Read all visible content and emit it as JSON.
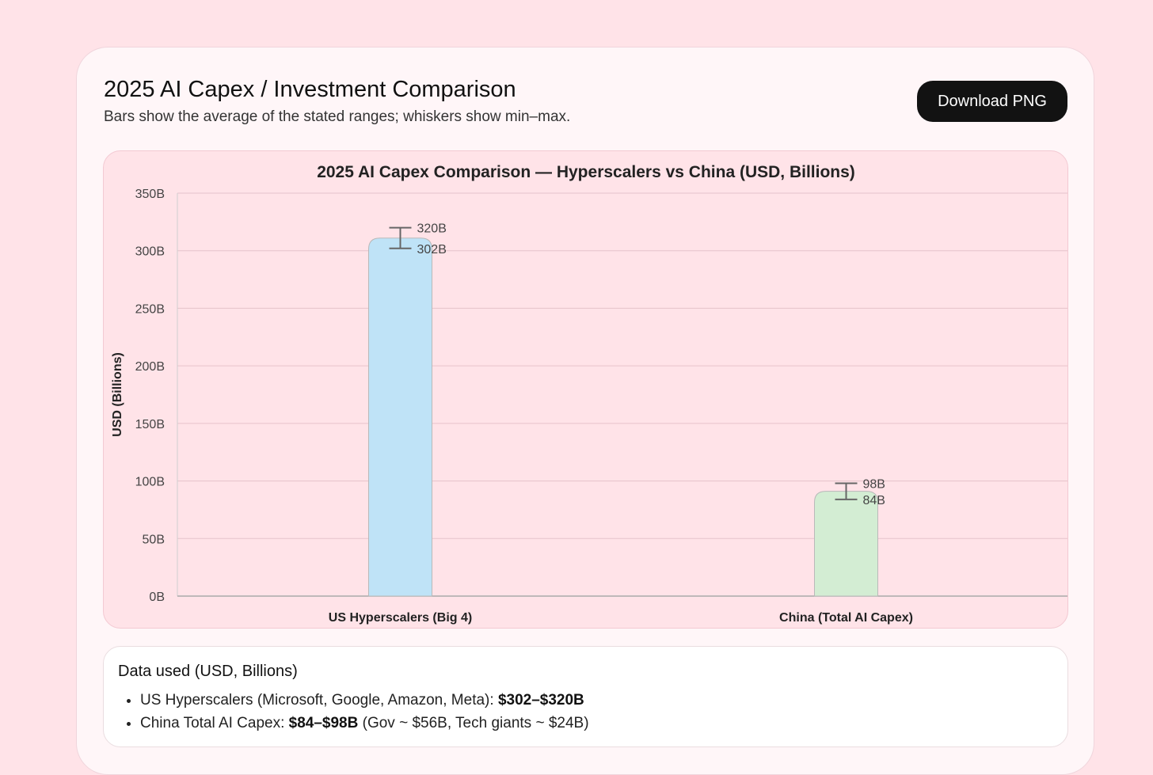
{
  "header": {
    "title": "2025 AI Capex / Investment Comparison",
    "subtitle": "Bars show the average of the stated ranges; whiskers show min–max.",
    "download_label": "Download PNG"
  },
  "chart_data": {
    "type": "bar",
    "title": "2025 AI Capex Comparison — Hyperscalers vs China (USD, Billions)",
    "xlabel": "",
    "ylabel": "USD (Billions)",
    "ylim": [
      0,
      350
    ],
    "yticks": [
      "0B",
      "50B",
      "100B",
      "150B",
      "200B",
      "250B",
      "300B",
      "350B"
    ],
    "categories": [
      "US Hyperscalers (Big 4)",
      "China (Total AI Capex)"
    ],
    "values": [
      311,
      91
    ],
    "min": [
      302,
      84
    ],
    "max": [
      320,
      98
    ],
    "min_labels": [
      "302B",
      "84B"
    ],
    "max_labels": [
      "320B",
      "98B"
    ],
    "colors": [
      "#bfe3f7",
      "#d3edd3"
    ],
    "grid": true,
    "legend": "none"
  },
  "data_used": {
    "title": "Data used (USD, Billions)",
    "items": [
      {
        "text": "US Hyperscalers (Microsoft, Google, Amazon, Meta): ",
        "bold": "$302–$320B",
        "suffix": ""
      },
      {
        "text": "China Total AI Capex: ",
        "bold": "$84–$98B",
        "suffix": " (Gov ~ $56B, Tech giants ~ $24B)"
      }
    ]
  }
}
